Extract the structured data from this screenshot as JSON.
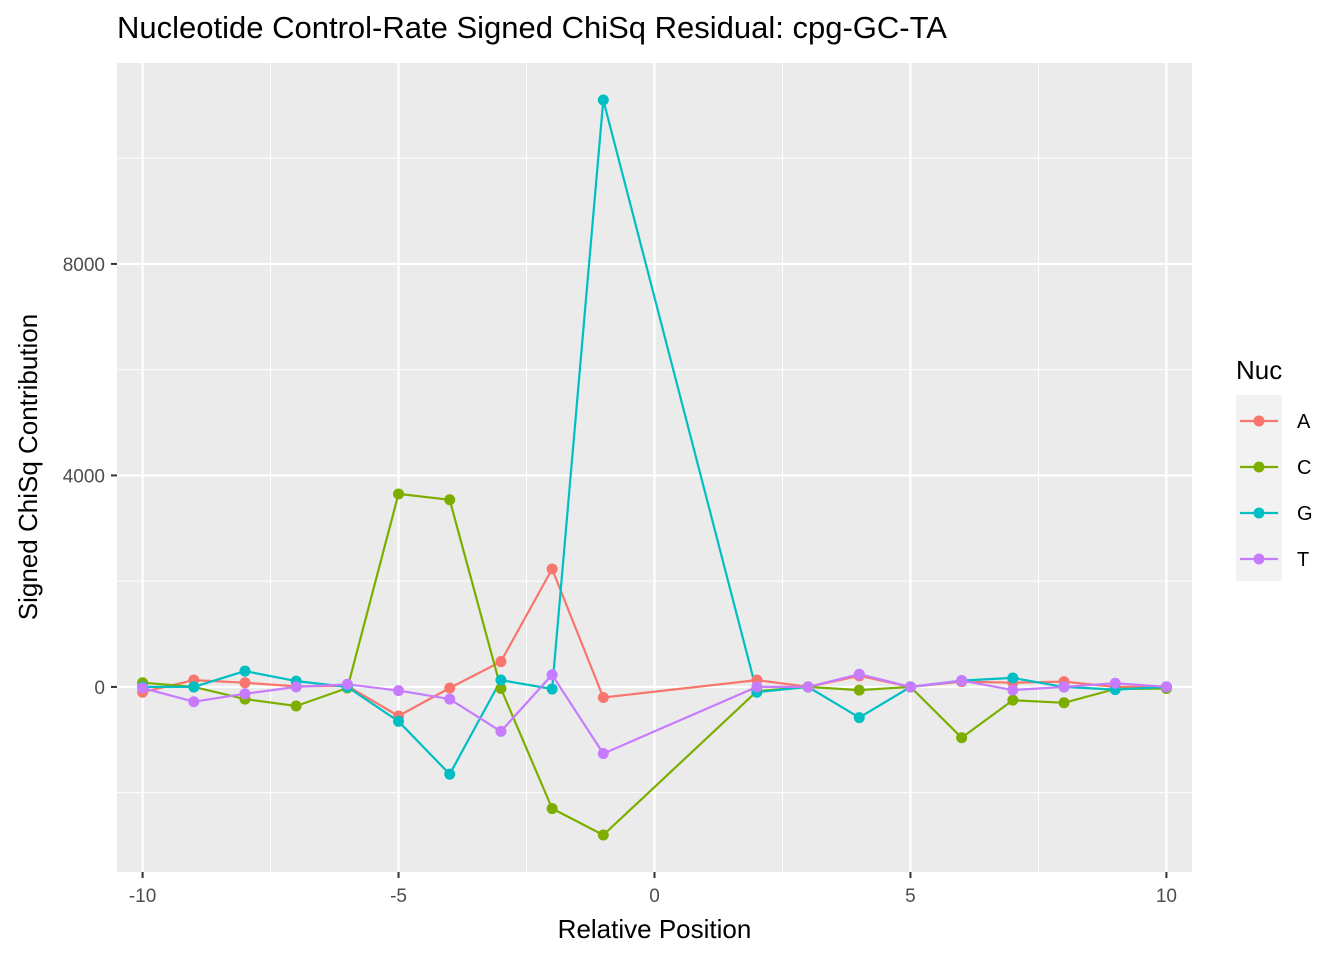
{
  "chart_data": {
    "type": "line",
    "title": "Nucleotide Control-Rate Signed ChiSq Residual: cpg-GC-TA",
    "xlabel": "Relative Position",
    "ylabel": "Signed ChiSq Contribution",
    "x": [
      -10,
      -9,
      -8,
      -7,
      -6,
      -5,
      -4,
      -3,
      -2,
      -1,
      2,
      3,
      4,
      5,
      6,
      7,
      8,
      9,
      10
    ],
    "xlim": [
      -10.5,
      10.5
    ],
    "ylim": [
      -3500,
      11800
    ],
    "x_ticks": [
      -10,
      -5,
      0,
      5,
      10
    ],
    "x_tick_labels": [
      "-10",
      "-5",
      "0",
      "5",
      "10"
    ],
    "y_ticks": [
      0,
      4000,
      8000
    ],
    "y_tick_labels": [
      "0",
      "4000",
      "8000"
    ],
    "grid": true,
    "legend_position": "right",
    "legend_title": "Nuc",
    "series": [
      {
        "name": "A",
        "color": "#F8766D",
        "values": [
          -100,
          130,
          80,
          10,
          20,
          -550,
          -20,
          480,
          2230,
          -200,
          130,
          0,
          210,
          0,
          100,
          80,
          100,
          0,
          0
        ]
      },
      {
        "name": "C",
        "color": "#7CAE00",
        "values": [
          80,
          0,
          -230,
          -360,
          -20,
          3650,
          3540,
          -30,
          -2300,
          -2800,
          -80,
          0,
          -60,
          0,
          -960,
          -250,
          -300,
          -40,
          -30
        ]
      },
      {
        "name": "G",
        "color": "#00BFC4",
        "values": [
          0,
          0,
          300,
          110,
          0,
          -650,
          -1650,
          130,
          -40,
          11100,
          -100,
          0,
          -580,
          0,
          120,
          170,
          0,
          -50,
          0
        ]
      },
      {
        "name": "T",
        "color": "#C77CFF",
        "values": [
          -20,
          -280,
          -130,
          0,
          50,
          -70,
          -230,
          -840,
          230,
          -1260,
          0,
          0,
          240,
          0,
          120,
          -60,
          0,
          70,
          0
        ]
      }
    ]
  }
}
